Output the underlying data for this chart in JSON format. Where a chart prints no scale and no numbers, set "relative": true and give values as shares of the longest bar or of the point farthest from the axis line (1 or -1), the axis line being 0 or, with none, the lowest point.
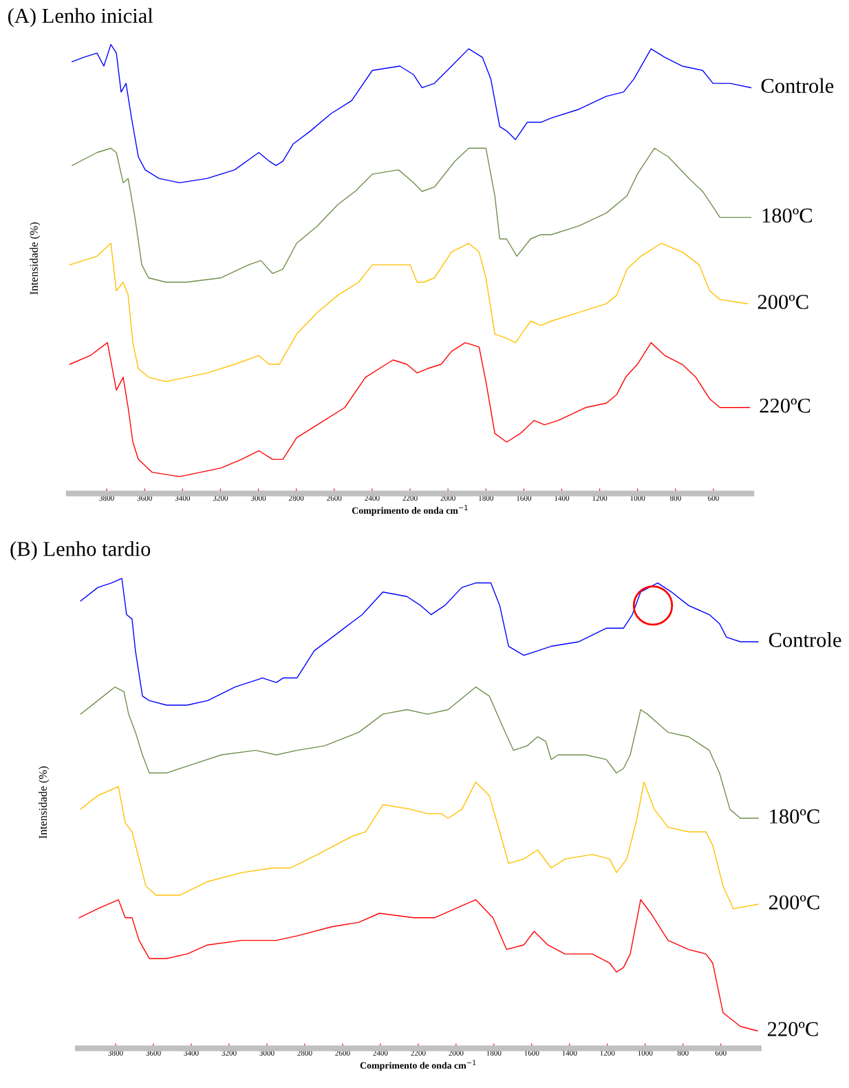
{
  "chart_data": [
    {
      "type": "line",
      "title": "(A) Lenho inicial",
      "xlabel": "Comprimento de onda cm$^{−1}$",
      "ylabel": "Intensidade (%)",
      "relative": true,
      "xlim": [
        4000,
        400
      ],
      "xticks": [
        3800,
        3600,
        3400,
        3200,
        3000,
        2800,
        2600,
        2400,
        2200,
        2000,
        1800,
        1600,
        1400,
        1200,
        1000,
        800,
        600
      ],
      "tick_labels": "x",
      "series": [
        {
          "name": "Controle",
          "color": "#0000ff",
          "x": [
            3982,
            3923,
            3851,
            3815,
            3778,
            3749,
            3724,
            3698,
            3669,
            3633,
            3597,
            3524,
            3415,
            3270,
            3125,
            2998,
            2943,
            2907,
            2871,
            2816,
            2725,
            2617,
            2508,
            2399,
            2254,
            2181,
            2137,
            2072,
            1981,
            1891,
            1818,
            1774,
            1727,
            1691,
            1644,
            1582,
            1510,
            1455,
            1310,
            1165,
            1074,
            1020,
            929,
            856,
            765,
            657,
            602,
            511,
            402
          ],
          "values": [
            0.96,
            0.97,
            0.98,
            0.95,
            1.0,
            0.98,
            0.89,
            0.91,
            0.83,
            0.74,
            0.71,
            0.69,
            0.68,
            0.69,
            0.71,
            0.75,
            0.73,
            0.72,
            0.73,
            0.77,
            0.8,
            0.84,
            0.87,
            0.94,
            0.95,
            0.93,
            0.9,
            0.91,
            0.95,
            0.99,
            0.97,
            0.92,
            0.81,
            0.8,
            0.78,
            0.82,
            0.82,
            0.83,
            0.85,
            0.88,
            0.89,
            0.92,
            0.99,
            0.97,
            0.95,
            0.94,
            0.91,
            0.91,
            0.9
          ]
        },
        {
          "name": "180ºC",
          "color": "#6f8f4a",
          "x": [
            3982,
            3851,
            3778,
            3749,
            3713,
            3687,
            3651,
            3615,
            3579,
            3488,
            3379,
            3197,
            3052,
            2987,
            2925,
            2871,
            2798,
            2689,
            2580,
            2490,
            2399,
            2261,
            2181,
            2137,
            2072,
            1963,
            1891,
            1800,
            1753,
            1727,
            1691,
            1637,
            1564,
            1510,
            1455,
            1310,
            1165,
            1056,
            1001,
            911,
            838,
            729,
            657,
            566,
            475,
            400
          ],
          "values": [
            0.72,
            0.75,
            0.76,
            0.75,
            0.68,
            0.69,
            0.6,
            0.49,
            0.46,
            0.45,
            0.45,
            0.46,
            0.49,
            0.5,
            0.47,
            0.48,
            0.54,
            0.58,
            0.63,
            0.66,
            0.7,
            0.71,
            0.68,
            0.66,
            0.67,
            0.73,
            0.76,
            0.76,
            0.65,
            0.55,
            0.55,
            0.51,
            0.55,
            0.56,
            0.56,
            0.58,
            0.61,
            0.65,
            0.7,
            0.76,
            0.74,
            0.69,
            0.66,
            0.6,
            0.6,
            0.6
          ]
        },
        {
          "name": "200ºC",
          "color": "#ffc000",
          "x": [
            3996,
            3851,
            3778,
            3749,
            3713,
            3687,
            3662,
            3633,
            3579,
            3488,
            3270,
            3125,
            2998,
            2943,
            2889,
            2798,
            2689,
            2580,
            2471,
            2399,
            2272,
            2199,
            2163,
            2127,
            2072,
            1981,
            1891,
            1836,
            1800,
            1753,
            1691,
            1644,
            1564,
            1510,
            1455,
            1310,
            1165,
            1110,
            1056,
            983,
            874,
            765,
            675,
            620,
            566,
            420
          ],
          "values": [
            0.49,
            0.51,
            0.54,
            0.43,
            0.45,
            0.42,
            0.31,
            0.25,
            0.23,
            0.22,
            0.24,
            0.26,
            0.28,
            0.26,
            0.26,
            0.33,
            0.38,
            0.42,
            0.45,
            0.49,
            0.49,
            0.49,
            0.45,
            0.45,
            0.46,
            0.52,
            0.54,
            0.52,
            0.46,
            0.33,
            0.32,
            0.31,
            0.36,
            0.35,
            0.36,
            0.38,
            0.4,
            0.42,
            0.48,
            0.51,
            0.54,
            0.52,
            0.49,
            0.43,
            0.41,
            0.4
          ]
        },
        {
          "name": "220ºC",
          "color": "#ff0000",
          "x": [
            3995,
            3887,
            3796,
            3749,
            3713,
            3687,
            3662,
            3633,
            3560,
            3415,
            3197,
            3089,
            2998,
            2925,
            2871,
            2798,
            2689,
            2544,
            2435,
            2290,
            2217,
            2163,
            2108,
            2036,
            1981,
            1909,
            1836,
            1800,
            1753,
            1691,
            1618,
            1546,
            1491,
            1419,
            1274,
            1165,
            1110,
            1063,
            1001,
            929,
            856,
            765,
            693,
            620,
            566,
            410
          ],
          "values": [
            0.26,
            0.28,
            0.31,
            0.2,
            0.23,
            0.16,
            0.08,
            0.04,
            0.01,
            0.0,
            0.02,
            0.04,
            0.06,
            0.04,
            0.04,
            0.09,
            0.12,
            0.16,
            0.23,
            0.27,
            0.26,
            0.24,
            0.25,
            0.26,
            0.29,
            0.31,
            0.3,
            0.22,
            0.1,
            0.08,
            0.1,
            0.13,
            0.12,
            0.13,
            0.16,
            0.17,
            0.19,
            0.23,
            0.26,
            0.31,
            0.28,
            0.26,
            0.23,
            0.18,
            0.16,
            0.16
          ]
        }
      ]
    },
    {
      "type": "line",
      "title": "(B) Lenho tardio",
      "xlabel": "Comprimento de onda cm$^{−1}$",
      "ylabel": "Intensidade (%)",
      "relative": true,
      "xlim": [
        4000,
        400
      ],
      "xticks": [
        3800,
        3600,
        3400,
        3200,
        3000,
        2800,
        2600,
        2400,
        2200,
        2000,
        1800,
        1600,
        1400,
        1200,
        1000,
        800,
        600
      ],
      "tick_labels": "x",
      "series": [
        {
          "name": "Controle",
          "color": "#0000ff",
          "x": [
            3985,
            3894,
            3822,
            3767,
            3742,
            3713,
            3695,
            3658,
            3622,
            3531,
            3422,
            3313,
            3168,
            3023,
            2950,
            2914,
            2841,
            2750,
            2623,
            2496,
            2387,
            2260,
            2187,
            2132,
            2060,
            1969,
            1896,
            1816,
            1769,
            1722,
            1642,
            1569,
            1497,
            1351,
            1206,
            1115,
            1068,
            1024,
            934,
            861,
            770,
            661,
            607,
            570,
            497,
            400
          ],
          "values": [
            0.95,
            0.98,
            0.99,
            1.0,
            0.92,
            0.91,
            0.84,
            0.74,
            0.73,
            0.72,
            0.72,
            0.73,
            0.76,
            0.78,
            0.77,
            0.78,
            0.78,
            0.84,
            0.88,
            0.92,
            0.97,
            0.96,
            0.94,
            0.92,
            0.94,
            0.98,
            0.99,
            0.99,
            0.94,
            0.85,
            0.83,
            0.84,
            0.85,
            0.86,
            0.89,
            0.89,
            0.92,
            0.97,
            0.99,
            0.97,
            0.94,
            0.92,
            0.9,
            0.87,
            0.86,
            0.86
          ]
        },
        {
          "name": "180ºC",
          "color": "#6f8f4a",
          "x": [
            3985,
            3894,
            3804,
            3756,
            3731,
            3695,
            3658,
            3622,
            3531,
            3386,
            3241,
            3059,
            2950,
            2841,
            2696,
            2514,
            2387,
            2260,
            2151,
            2042,
            1896,
            1824,
            1751,
            1696,
            1624,
            1569,
            1526,
            1497,
            1460,
            1315,
            1206,
            1152,
            1115,
            1079,
            1024,
            988,
            934,
            879,
            770,
            661,
            607,
            552,
            497,
            400
          ],
          "values": [
            0.7,
            0.73,
            0.76,
            0.75,
            0.7,
            0.66,
            0.61,
            0.57,
            0.57,
            0.59,
            0.61,
            0.62,
            0.61,
            0.62,
            0.63,
            0.66,
            0.7,
            0.71,
            0.7,
            0.71,
            0.76,
            0.74,
            0.67,
            0.62,
            0.63,
            0.65,
            0.64,
            0.6,
            0.61,
            0.61,
            0.6,
            0.57,
            0.58,
            0.61,
            0.71,
            0.7,
            0.68,
            0.66,
            0.65,
            0.62,
            0.57,
            0.49,
            0.47,
            0.47
          ]
        },
        {
          "name": "200ºC",
          "color": "#ffc000",
          "x": [
            3985,
            3894,
            3785,
            3749,
            3713,
            3676,
            3640,
            3586,
            3459,
            3313,
            3132,
            2968,
            2877,
            2732,
            2550,
            2478,
            2387,
            2241,
            2151,
            2078,
            2042,
            1969,
            1896,
            1824,
            1769,
            1722,
            1642,
            1569,
            1497,
            1424,
            1279,
            1188,
            1152,
            1097,
            1043,
            1006,
            952,
            879,
            770,
            679,
            643,
            588,
            534,
            400
          ],
          "values": [
            0.49,
            0.52,
            0.54,
            0.46,
            0.44,
            0.38,
            0.32,
            0.3,
            0.3,
            0.33,
            0.35,
            0.36,
            0.36,
            0.39,
            0.43,
            0.44,
            0.5,
            0.49,
            0.48,
            0.48,
            0.47,
            0.49,
            0.55,
            0.52,
            0.44,
            0.37,
            0.38,
            0.4,
            0.36,
            0.38,
            0.39,
            0.38,
            0.35,
            0.38,
            0.47,
            0.55,
            0.49,
            0.45,
            0.44,
            0.44,
            0.41,
            0.32,
            0.27,
            0.28
          ]
        },
        {
          "name": "220ºC",
          "color": "#ff0000",
          "x": [
            3993,
            3894,
            3785,
            3749,
            3713,
            3676,
            3622,
            3531,
            3422,
            3313,
            3132,
            2950,
            2841,
            2659,
            2514,
            2405,
            2223,
            2114,
            2005,
            1896,
            1805,
            1733,
            1642,
            1587,
            1515,
            1424,
            1279,
            1188,
            1152,
            1115,
            1079,
            1024,
            970,
            879,
            770,
            679,
            643,
            588,
            497,
            407
          ],
          "values": [
            0.25,
            0.27,
            0.29,
            0.25,
            0.25,
            0.2,
            0.16,
            0.16,
            0.17,
            0.19,
            0.2,
            0.2,
            0.21,
            0.23,
            0.24,
            0.26,
            0.25,
            0.25,
            0.27,
            0.29,
            0.25,
            0.18,
            0.19,
            0.22,
            0.19,
            0.17,
            0.17,
            0.15,
            0.13,
            0.14,
            0.17,
            0.29,
            0.26,
            0.2,
            0.18,
            0.17,
            0.15,
            0.04,
            0.01,
            0.0
          ]
        }
      ]
    }
  ]
}
